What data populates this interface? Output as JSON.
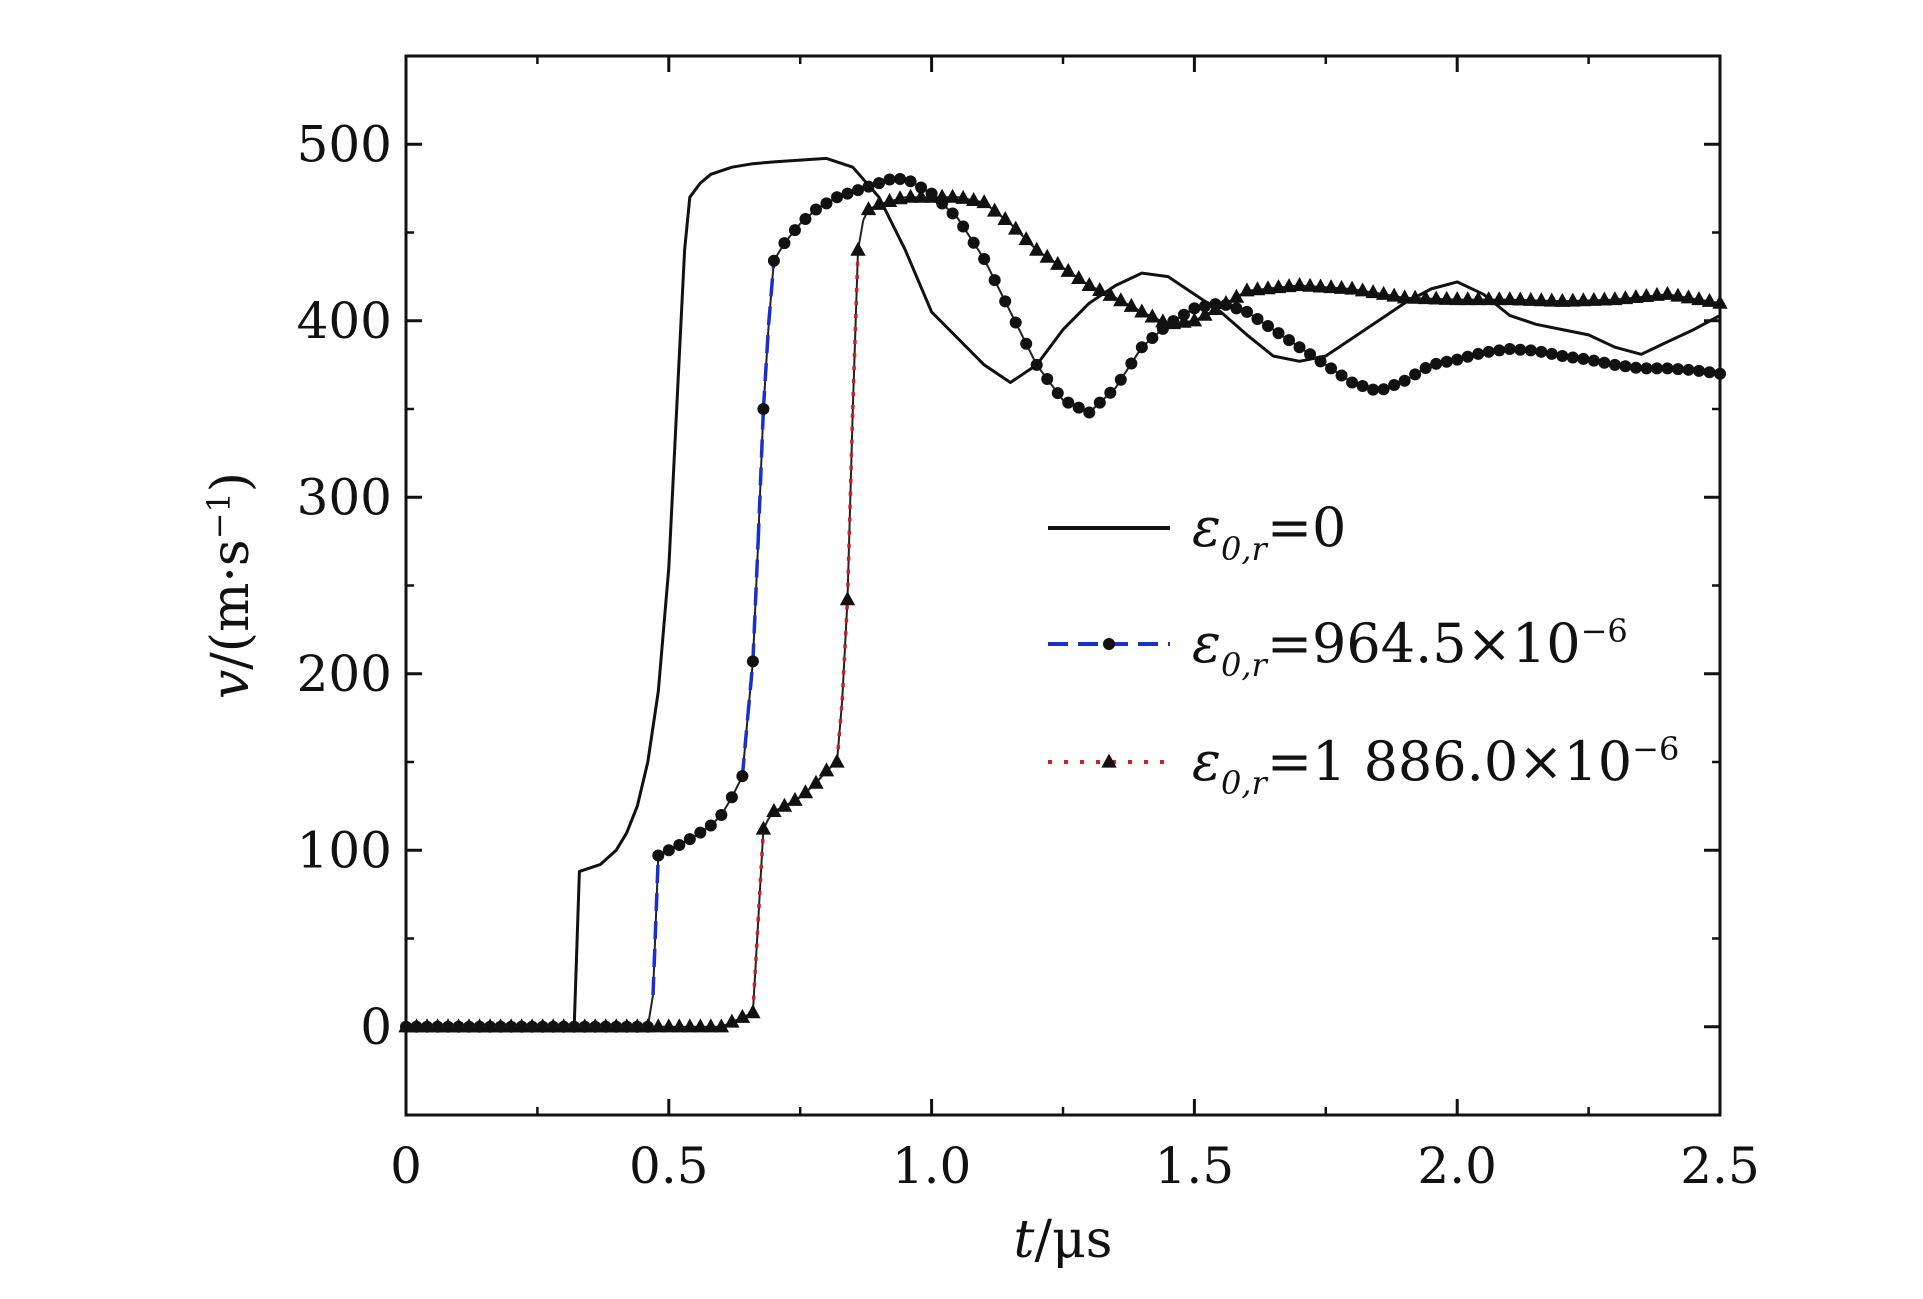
{
  "chart_data": {
    "type": "line",
    "xlabel_var": "t",
    "xlabel_unit": "/μs",
    "ylabel_var": "v",
    "ylabel_unit": "/(m·s",
    "ylabel_sup": "−1",
    "ylabel_close": ")",
    "xlim": [
      0,
      2.5
    ],
    "ylim": [
      -50,
      550
    ],
    "x_ticks": [
      0,
      0.5,
      1.0,
      1.5,
      2.0,
      2.5
    ],
    "x_tick_labels": [
      "0",
      "0.5",
      "1.0",
      "1.5",
      "2.0",
      "2.5"
    ],
    "y_ticks": [
      0,
      100,
      200,
      300,
      400,
      500
    ],
    "y_tick_labels": [
      "0",
      "100",
      "200",
      "300",
      "400",
      "500"
    ],
    "grid": false,
    "legend_position": "center-right",
    "series": [
      {
        "legend": {
          "pre": "ε",
          "sub": "0,r",
          "post": "=0",
          "sup": ""
        },
        "line_color": "#111111",
        "marker": "none",
        "marker_color": "#111111",
        "x": [
          0,
          0.32,
          0.33,
          0.34,
          0.37,
          0.4,
          0.42,
          0.44,
          0.46,
          0.48,
          0.5,
          0.52,
          0.53,
          0.54,
          0.56,
          0.58,
          0.62,
          0.66,
          0.7,
          0.75,
          0.8,
          0.85,
          0.9,
          0.95,
          1.0,
          1.05,
          1.1,
          1.15,
          1.2,
          1.25,
          1.3,
          1.35,
          1.4,
          1.45,
          1.5,
          1.55,
          1.6,
          1.65,
          1.7,
          1.75,
          1.8,
          1.85,
          1.9,
          1.95,
          2.0,
          2.05,
          2.1,
          2.15,
          2.2,
          2.25,
          2.3,
          2.35,
          2.4,
          2.45,
          2.5
        ],
        "y": [
          0,
          0,
          88,
          89,
          92,
          100,
          110,
          125,
          150,
          190,
          260,
          380,
          440,
          470,
          478,
          483,
          487,
          489,
          490,
          491,
          492,
          487,
          470,
          440,
          405,
          390,
          375,
          365,
          375,
          395,
          410,
          420,
          427,
          425,
          415,
          405,
          392,
          380,
          377,
          380,
          390,
          400,
          410,
          418,
          422,
          415,
          403,
          398,
          395,
          392,
          385,
          381,
          388,
          395,
          403
        ]
      },
      {
        "legend": {
          "pre": "ε",
          "sub": "0,r",
          "post": "=964.5×10",
          "sup": "−6"
        },
        "line_color": "#1a2fd0",
        "marker": "circle",
        "marker_color": "#111111",
        "x": [
          0,
          0.46,
          0.47,
          0.48,
          0.5,
          0.52,
          0.55,
          0.58,
          0.6,
          0.62,
          0.64,
          0.65,
          0.66,
          0.67,
          0.68,
          0.69,
          0.7,
          0.72,
          0.75,
          0.78,
          0.82,
          0.86,
          0.9,
          0.93,
          0.96,
          1.0,
          1.05,
          1.1,
          1.15,
          1.2,
          1.25,
          1.3,
          1.35,
          1.4,
          1.45,
          1.5,
          1.55,
          1.6,
          1.65,
          1.7,
          1.75,
          1.8,
          1.85,
          1.9,
          1.95,
          2.0,
          2.05,
          2.1,
          2.15,
          2.2,
          2.25,
          2.3,
          2.35,
          2.4,
          2.45,
          2.5
        ],
        "y": [
          0,
          0,
          18,
          97,
          100,
          103,
          108,
          114,
          120,
          130,
          142,
          175,
          207,
          275,
          350,
          398,
          434,
          444,
          455,
          463,
          470,
          474,
          478,
          481,
          479,
          472,
          458,
          435,
          405,
          375,
          355,
          348,
          362,
          385,
          398,
          407,
          410,
          405,
          395,
          385,
          375,
          365,
          360,
          366,
          375,
          378,
          382,
          384,
          383,
          380,
          378,
          375,
          373,
          373,
          372,
          370
        ]
      },
      {
        "legend": {
          "pre": "ε",
          "sub": "0,r",
          "post": "=1 886.0×10",
          "sup": "−6"
        },
        "line_color": "#d21e1e",
        "marker": "triangle",
        "marker_color": "#111111",
        "x": [
          0,
          0.6,
          0.66,
          0.67,
          0.68,
          0.69,
          0.7,
          0.72,
          0.75,
          0.78,
          0.8,
          0.82,
          0.83,
          0.84,
          0.85,
          0.86,
          0.87,
          0.88,
          0.9,
          0.95,
          1.0,
          1.05,
          1.1,
          1.15,
          1.2,
          1.25,
          1.3,
          1.35,
          1.4,
          1.45,
          1.5,
          1.55,
          1.6,
          1.7,
          1.8,
          1.9,
          2.0,
          2.1,
          2.2,
          2.3,
          2.4,
          2.5
        ],
        "y": [
          0,
          0,
          8,
          60,
          112,
          118,
          122,
          125,
          130,
          138,
          145,
          150,
          185,
          242,
          350,
          440,
          457,
          463,
          466,
          470,
          470,
          470,
          467,
          455,
          440,
          430,
          420,
          413,
          405,
          398,
          400,
          408,
          417,
          420,
          418,
          413,
          412,
          412,
          411,
          412,
          415,
          410
        ]
      }
    ]
  }
}
